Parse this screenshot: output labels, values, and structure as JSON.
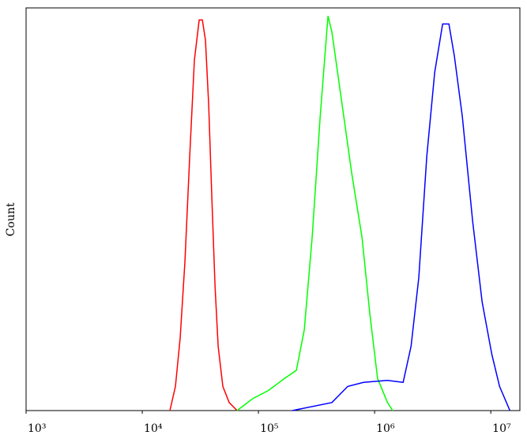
{
  "chart_data": {
    "type": "line",
    "y_label": "Count",
    "x_log": true,
    "xlim": [
      1000,
      17800000
    ],
    "ylim": [
      0,
      100
    ],
    "xticks": [
      {
        "value": 1000,
        "label": "10³"
      },
      {
        "value": 10000,
        "label": "10⁴"
      },
      {
        "value": 100000,
        "label": "10⁵"
      },
      {
        "value": 1000000,
        "label": "10⁶"
      },
      {
        "value": 10000000,
        "label": "10⁷"
      }
    ],
    "series": [
      {
        "color": "#ff0000",
        "x": [
          17300,
          19300,
          21200,
          23300,
          25600,
          28100,
          30900,
          32900,
          35000,
          37300,
          39700,
          42300,
          45000,
          49400,
          56000,
          65500
        ],
        "values": [
          0,
          6,
          18,
          37,
          63,
          87,
          97,
          97,
          92,
          76,
          53,
          31,
          16,
          6,
          2,
          0
        ]
      },
      {
        "color": "#00ff00",
        "x": [
          65500,
          89600,
          122000,
          168000,
          212000,
          248000,
          290000,
          340000,
          397000,
          429000,
          502000,
          635000,
          779000,
          910000,
          1060000,
          1290000,
          1430000
        ],
        "values": [
          0,
          3,
          5,
          8,
          10,
          20,
          43,
          73,
          98,
          94,
          80,
          59,
          43,
          24,
          8,
          2,
          0
        ]
      },
      {
        "color": "#0000ff",
        "x": [
          196000,
          429000,
          587000,
          803000,
          1290000,
          1760000,
          2060000,
          2400000,
          2810000,
          3290000,
          3850000,
          4360000,
          4860000,
          5690000,
          6980000,
          8420000,
          10200000,
          11900000,
          14600000
        ],
        "values": [
          0,
          2,
          6,
          7,
          7.5,
          7,
          16,
          33,
          63,
          84,
          96,
          96,
          88,
          73,
          47,
          27,
          14,
          6,
          0
        ]
      }
    ]
  }
}
